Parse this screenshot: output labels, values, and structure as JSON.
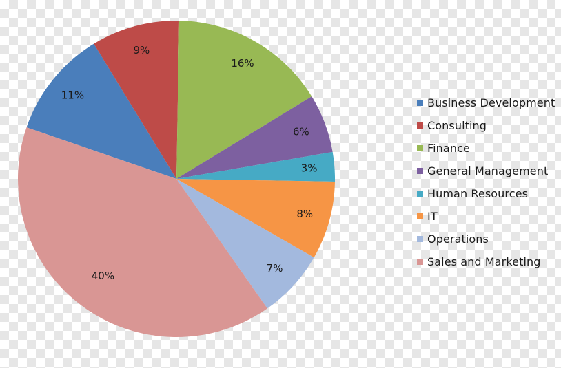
{
  "chart_data": {
    "type": "pie",
    "title": "",
    "legend_position": "right",
    "slices": [
      {
        "name": "Business Development",
        "value": 11,
        "label": "11%",
        "color": "#4a7ebb"
      },
      {
        "name": "Consulting",
        "value": 9,
        "label": "9%",
        "color": "#be4b48"
      },
      {
        "name": "Finance",
        "value": 16,
        "label": "16%",
        "color": "#98b954"
      },
      {
        "name": "General Management",
        "value": 6,
        "label": "6%",
        "color": "#7d60a0"
      },
      {
        "name": "Human Resources",
        "value": 3,
        "label": "3%",
        "color": "#46aac5"
      },
      {
        "name": "IT",
        "value": 8,
        "label": "8%",
        "color": "#f69545"
      },
      {
        "name": "Operations",
        "value": 7,
        "label": "7%",
        "color": "#a3b9de"
      },
      {
        "name": "Sales and Marketing",
        "value": 40,
        "label": "40%",
        "color": "#d99694"
      }
    ],
    "legend": [
      "Business Development",
      "Consulting",
      "Finance",
      "General Management",
      "Human Resources",
      "IT",
      "Operations",
      "Sales and Marketing"
    ]
  }
}
